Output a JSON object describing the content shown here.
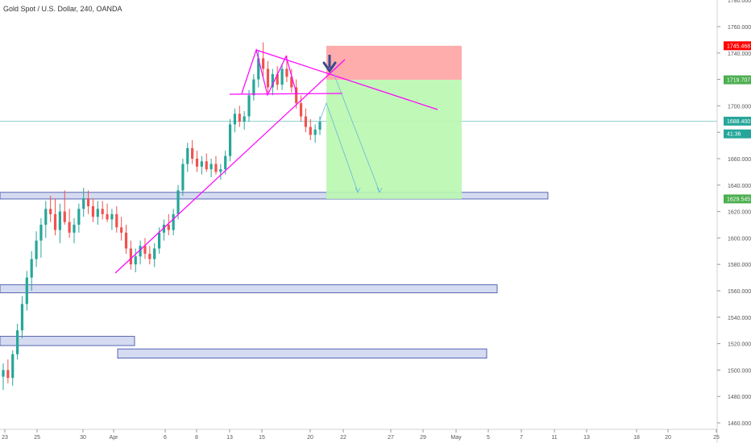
{
  "title": "Gold Spot / U.S. Dollar, 240, OANDA",
  "colors": {
    "up": "#26a69a",
    "down": "#ef5350",
    "trend": "#ff00ff",
    "stop_zone": "#ff9e9e",
    "target_zone": "#b9f7b0",
    "support_zone_fill": "#d3daf0",
    "support_zone_border": "#2a3c9c",
    "current_line": "#26a69a",
    "arrow": "#6bb6d6",
    "big_arrow": "#3b4a8c"
  },
  "price_axis": {
    "labels": [
      "1760.000",
      "1740.000",
      "1720.000",
      "1700.000",
      "1680.000",
      "1660.000",
      "1640.000",
      "1620.000",
      "1600.000",
      "1580.000",
      "1560.000",
      "1540.000",
      "1520.000",
      "1500.000",
      "1480.000",
      "1460.000"
    ],
    "partial_top": "1780.000"
  },
  "price_tags": [
    {
      "label": "1745.468",
      "value": 1745.468,
      "color": "#ff0000"
    },
    {
      "label": "1719.707",
      "value": 1719.707,
      "color": "#4caf50"
    },
    {
      "label": "1688.400",
      "value": 1688.4,
      "color": "#26a69a"
    },
    {
      "label": "41:36",
      "value": 1680.0,
      "color": "#26a69a"
    },
    {
      "label": "1629.545",
      "value": 1629.545,
      "color": "#4caf50"
    }
  ],
  "chart_data": {
    "type": "candlestick",
    "ylim": [
      1460,
      1780
    ],
    "x_ticks": [
      "23",
      "25",
      "30",
      "Apr",
      "6",
      "8",
      "13",
      "15",
      "20",
      "22",
      "27",
      "29",
      "May",
      "5",
      "7",
      "11",
      "13",
      "18",
      "20",
      "25"
    ],
    "candles": [
      {
        "o": 1495,
        "h": 1505,
        "l": 1485,
        "c": 1500
      },
      {
        "o": 1500,
        "h": 1508,
        "l": 1490,
        "c": 1494
      },
      {
        "o": 1494,
        "h": 1515,
        "l": 1488,
        "c": 1512
      },
      {
        "o": 1512,
        "h": 1535,
        "l": 1508,
        "c": 1530
      },
      {
        "o": 1530,
        "h": 1556,
        "l": 1524,
        "c": 1550
      },
      {
        "o": 1550,
        "h": 1575,
        "l": 1545,
        "c": 1570
      },
      {
        "o": 1570,
        "h": 1590,
        "l": 1560,
        "c": 1584
      },
      {
        "o": 1584,
        "h": 1605,
        "l": 1578,
        "c": 1598
      },
      {
        "o": 1598,
        "h": 1615,
        "l": 1585,
        "c": 1610
      },
      {
        "o": 1610,
        "h": 1628,
        "l": 1600,
        "c": 1622
      },
      {
        "o": 1622,
        "h": 1632,
        "l": 1612,
        "c": 1618
      },
      {
        "o": 1618,
        "h": 1630,
        "l": 1602,
        "c": 1606
      },
      {
        "o": 1606,
        "h": 1626,
        "l": 1596,
        "c": 1620
      },
      {
        "o": 1620,
        "h": 1636,
        "l": 1610,
        "c": 1612
      },
      {
        "o": 1612,
        "h": 1622,
        "l": 1600,
        "c": 1604
      },
      {
        "o": 1604,
        "h": 1615,
        "l": 1596,
        "c": 1610
      },
      {
        "o": 1610,
        "h": 1626,
        "l": 1604,
        "c": 1622
      },
      {
        "o": 1622,
        "h": 1638,
        "l": 1616,
        "c": 1630
      },
      {
        "o": 1630,
        "h": 1636,
        "l": 1618,
        "c": 1624
      },
      {
        "o": 1624,
        "h": 1630,
        "l": 1612,
        "c": 1616
      },
      {
        "o": 1616,
        "h": 1628,
        "l": 1610,
        "c": 1622
      },
      {
        "o": 1622,
        "h": 1628,
        "l": 1614,
        "c": 1618
      },
      {
        "o": 1618,
        "h": 1626,
        "l": 1612,
        "c": 1614
      },
      {
        "o": 1614,
        "h": 1622,
        "l": 1606,
        "c": 1618
      },
      {
        "o": 1618,
        "h": 1624,
        "l": 1604,
        "c": 1608
      },
      {
        "o": 1608,
        "h": 1616,
        "l": 1598,
        "c": 1604
      },
      {
        "o": 1604,
        "h": 1610,
        "l": 1588,
        "c": 1592
      },
      {
        "o": 1592,
        "h": 1598,
        "l": 1576,
        "c": 1580
      },
      {
        "o": 1580,
        "h": 1592,
        "l": 1574,
        "c": 1586
      },
      {
        "o": 1586,
        "h": 1598,
        "l": 1580,
        "c": 1594
      },
      {
        "o": 1594,
        "h": 1600,
        "l": 1584,
        "c": 1588
      },
      {
        "o": 1588,
        "h": 1594,
        "l": 1580,
        "c": 1584
      },
      {
        "o": 1584,
        "h": 1596,
        "l": 1578,
        "c": 1592
      },
      {
        "o": 1592,
        "h": 1608,
        "l": 1588,
        "c": 1604
      },
      {
        "o": 1604,
        "h": 1614,
        "l": 1598,
        "c": 1610
      },
      {
        "o": 1610,
        "h": 1618,
        "l": 1602,
        "c": 1606
      },
      {
        "o": 1606,
        "h": 1622,
        "l": 1602,
        "c": 1618
      },
      {
        "o": 1618,
        "h": 1640,
        "l": 1614,
        "c": 1636
      },
      {
        "o": 1636,
        "h": 1660,
        "l": 1632,
        "c": 1656
      },
      {
        "o": 1656,
        "h": 1672,
        "l": 1650,
        "c": 1668
      },
      {
        "o": 1668,
        "h": 1674,
        "l": 1656,
        "c": 1660
      },
      {
        "o": 1660,
        "h": 1666,
        "l": 1650,
        "c": 1654
      },
      {
        "o": 1654,
        "h": 1662,
        "l": 1648,
        "c": 1658
      },
      {
        "o": 1658,
        "h": 1664,
        "l": 1650,
        "c": 1652
      },
      {
        "o": 1652,
        "h": 1660,
        "l": 1646,
        "c": 1656
      },
      {
        "o": 1656,
        "h": 1662,
        "l": 1648,
        "c": 1650
      },
      {
        "o": 1650,
        "h": 1656,
        "l": 1644,
        "c": 1652
      },
      {
        "o": 1652,
        "h": 1666,
        "l": 1648,
        "c": 1662
      },
      {
        "o": 1662,
        "h": 1690,
        "l": 1658,
        "c": 1686
      },
      {
        "o": 1686,
        "h": 1698,
        "l": 1680,
        "c": 1694
      },
      {
        "o": 1694,
        "h": 1700,
        "l": 1684,
        "c": 1688
      },
      {
        "o": 1688,
        "h": 1696,
        "l": 1682,
        "c": 1692
      },
      {
        "o": 1692,
        "h": 1712,
        "l": 1688,
        "c": 1708
      },
      {
        "o": 1708,
        "h": 1724,
        "l": 1704,
        "c": 1720
      },
      {
        "o": 1720,
        "h": 1742,
        "l": 1714,
        "c": 1736
      },
      {
        "o": 1736,
        "h": 1748,
        "l": 1722,
        "c": 1728
      },
      {
        "o": 1728,
        "h": 1734,
        "l": 1710,
        "c": 1714
      },
      {
        "o": 1714,
        "h": 1728,
        "l": 1708,
        "c": 1724
      },
      {
        "o": 1724,
        "h": 1730,
        "l": 1712,
        "c": 1716
      },
      {
        "o": 1716,
        "h": 1732,
        "l": 1712,
        "c": 1728
      },
      {
        "o": 1728,
        "h": 1738,
        "l": 1718,
        "c": 1722
      },
      {
        "o": 1722,
        "h": 1728,
        "l": 1710,
        "c": 1714
      },
      {
        "o": 1714,
        "h": 1720,
        "l": 1698,
        "c": 1702
      },
      {
        "o": 1702,
        "h": 1708,
        "l": 1688,
        "c": 1692
      },
      {
        "o": 1692,
        "h": 1698,
        "l": 1680,
        "c": 1684
      },
      {
        "o": 1684,
        "h": 1690,
        "l": 1674,
        "c": 1678
      },
      {
        "o": 1678,
        "h": 1686,
        "l": 1672,
        "c": 1682
      },
      {
        "o": 1682,
        "h": 1692,
        "l": 1678,
        "c": 1688
      }
    ],
    "support_zones": [
      {
        "low": 1629.5,
        "high": 1634.5,
        "from_date_index": 0,
        "to_label": "11"
      },
      {
        "low": 1558.5,
        "high": 1564.5,
        "from_date_index": 0,
        "to_label": "5"
      },
      {
        "low": 1518.5,
        "high": 1525.5,
        "from_date_index": 0,
        "to_label": "Apr+"
      },
      {
        "low": 1509.0,
        "high": 1516.0,
        "from_date_index": 0,
        "to_label": "5"
      }
    ],
    "position": {
      "entry": 1719.707,
      "stop": 1745.468,
      "target": 1629.545
    },
    "current_price": 1688.4
  }
}
